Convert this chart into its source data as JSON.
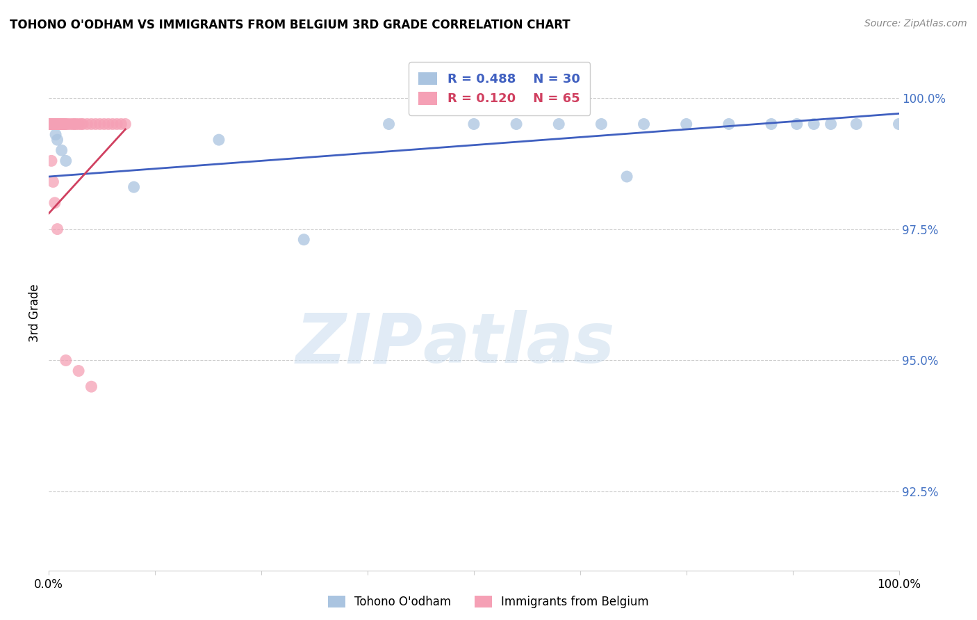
{
  "title": "TOHONO O'ODHAM VS IMMIGRANTS FROM BELGIUM 3RD GRADE CORRELATION CHART",
  "source": "Source: ZipAtlas.com",
  "ylabel": "3rd Grade",
  "yticks": [
    92.5,
    95.0,
    97.5,
    100.0
  ],
  "ytick_labels": [
    "92.5%",
    "95.0%",
    "97.5%",
    "100.0%"
  ],
  "xmin": 0.0,
  "xmax": 100.0,
  "ymin": 91.0,
  "ymax": 100.8,
  "blue_color": "#aac4e0",
  "pink_color": "#f5a0b5",
  "blue_line_color": "#4060c0",
  "pink_line_color": "#d04060",
  "legend_blue_R": "R = 0.488",
  "legend_blue_N": "N = 30",
  "legend_pink_R": "R = 0.120",
  "legend_pink_N": "N = 65",
  "watermark_zip": "ZIP",
  "watermark_atlas": "atlas",
  "blue_x": [
    0.1,
    0.15,
    0.2,
    0.25,
    0.3,
    0.35,
    0.5,
    0.6,
    0.8,
    1.0,
    1.5,
    2.0,
    10.0,
    20.0,
    30.0,
    40.0,
    50.0,
    55.0,
    60.0,
    65.0,
    68.0,
    70.0,
    75.0,
    80.0,
    85.0,
    88.0,
    90.0,
    92.0,
    95.0,
    100.0
  ],
  "blue_y": [
    99.5,
    99.5,
    99.5,
    99.5,
    99.5,
    99.5,
    99.5,
    99.5,
    99.3,
    99.2,
    99.0,
    98.8,
    98.3,
    99.2,
    97.3,
    99.5,
    99.5,
    99.5,
    99.5,
    99.5,
    98.5,
    99.5,
    99.5,
    99.5,
    99.5,
    99.5,
    99.5,
    99.5,
    99.5,
    99.5
  ],
  "pink_x": [
    0.05,
    0.1,
    0.12,
    0.15,
    0.18,
    0.2,
    0.22,
    0.25,
    0.28,
    0.3,
    0.32,
    0.35,
    0.38,
    0.4,
    0.42,
    0.45,
    0.48,
    0.5,
    0.52,
    0.55,
    0.58,
    0.6,
    0.65,
    0.7,
    0.75,
    0.8,
    0.85,
    0.9,
    0.95,
    1.0,
    1.1,
    1.2,
    1.3,
    1.4,
    1.5,
    1.6,
    1.7,
    1.8,
    1.9,
    2.0,
    2.2,
    2.5,
    2.8,
    3.0,
    3.2,
    3.5,
    3.8,
    4.0,
    4.5,
    5.0,
    5.5,
    6.0,
    6.5,
    7.0,
    7.5,
    8.0,
    8.5,
    9.0,
    0.3,
    0.5,
    0.7,
    1.0,
    2.0,
    3.5,
    5.0
  ],
  "pink_y": [
    99.5,
    99.5,
    99.5,
    99.5,
    99.5,
    99.5,
    99.5,
    99.5,
    99.5,
    99.5,
    99.5,
    99.5,
    99.5,
    99.5,
    99.5,
    99.5,
    99.5,
    99.5,
    99.5,
    99.5,
    99.5,
    99.5,
    99.5,
    99.5,
    99.5,
    99.5,
    99.5,
    99.5,
    99.5,
    99.5,
    99.5,
    99.5,
    99.5,
    99.5,
    99.5,
    99.5,
    99.5,
    99.5,
    99.5,
    99.5,
    99.5,
    99.5,
    99.5,
    99.5,
    99.5,
    99.5,
    99.5,
    99.5,
    99.5,
    99.5,
    99.5,
    99.5,
    99.5,
    99.5,
    99.5,
    99.5,
    99.5,
    99.5,
    98.8,
    98.4,
    98.0,
    97.5,
    95.0,
    94.8,
    94.5
  ],
  "blue_line_x0": 0.0,
  "blue_line_x1": 100.0,
  "blue_line_y0": 98.5,
  "blue_line_y1": 99.7,
  "pink_line_x0": 0.0,
  "pink_line_x1": 9.0,
  "pink_line_y0": 97.8,
  "pink_line_y1": 99.4
}
